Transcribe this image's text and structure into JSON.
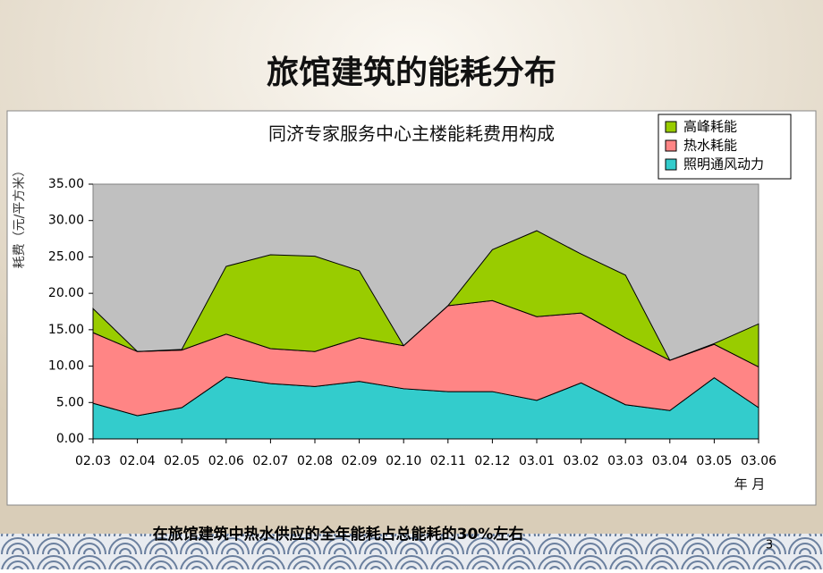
{
  "page_title": "旅馆建筑的能耗分布",
  "chart_data": {
    "type": "stacked_area",
    "title": "同济专家服务中心主楼能耗费用构成",
    "x_label": "年 月",
    "y_label": "耗费（元/平方米）",
    "categories": [
      "02.03",
      "02.04",
      "02.05",
      "02.06",
      "02.07",
      "02.08",
      "02.09",
      "02.10",
      "02.11",
      "02.12",
      "03.01",
      "03.02",
      "03.03",
      "03.04",
      "03.05",
      "03.06"
    ],
    "series": [
      {
        "name": "照明通风动力",
        "color": "#33cccc",
        "values": [
          4.9,
          3.2,
          4.3,
          8.5,
          7.6,
          7.2,
          7.9,
          6.9,
          6.5,
          6.5,
          5.3,
          7.7,
          4.7,
          3.9,
          8.4,
          4.3
        ]
      },
      {
        "name": "热水耗能",
        "color": "#ff8585",
        "values": [
          9.7,
          8.8,
          7.9,
          5.9,
          4.8,
          4.8,
          6.0,
          5.9,
          11.8,
          12.5,
          11.5,
          9.6,
          9.2,
          6.9,
          4.6,
          5.6
        ]
      },
      {
        "name": "高峰耗能",
        "color": "#99cc00",
        "values": [
          3.3,
          0,
          0.1,
          9.3,
          12.9,
          13.1,
          9.2,
          0,
          0,
          7.0,
          11.8,
          8.1,
          8.6,
          0,
          0.1,
          5.9
        ]
      }
    ],
    "ylim": [
      0,
      35
    ],
    "yticks": [
      {
        "value": 0,
        "label": "0.00"
      },
      {
        "value": 5,
        "label": "5.00"
      },
      {
        "value": 10,
        "label": "10.00"
      },
      {
        "value": 15,
        "label": "15.00"
      },
      {
        "value": 20,
        "label": "20.00"
      },
      {
        "value": 25,
        "label": "25.00"
      },
      {
        "value": 30,
        "label": "30.00"
      },
      {
        "value": 35,
        "label": "35.00"
      }
    ],
    "legend": "top-right",
    "plot_background": "#c0c0c0"
  },
  "footer": "在旅馆建筑中热水供应的全年能耗占总能耗的30%左右",
  "page_number": "3"
}
